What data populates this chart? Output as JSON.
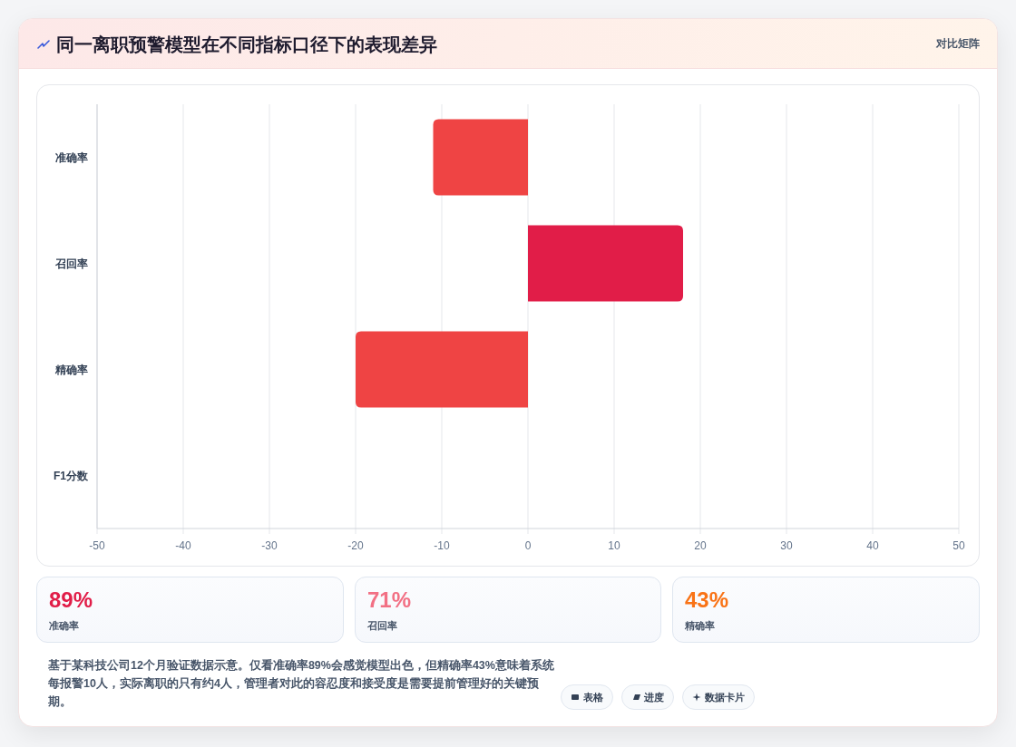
{
  "chart_data": [
    {
      "type": "bar",
      "title": "同一离职预警模型在不同指标口径下的表现差异",
      "orientation": "horizontal",
      "categories": [
        "准确率",
        "召回率",
        "精确率",
        "F1分数"
      ],
      "values": [
        -11,
        18,
        -20,
        null
      ],
      "colors": [
        "#ef4444",
        "#e11d48",
        "#ef4444",
        null
      ],
      "xlim": [
        -50,
        50
      ],
      "xticks": [
        -50,
        -40,
        -30,
        -20,
        -10,
        0,
        10,
        20,
        30,
        40,
        50
      ],
      "grid": "x",
      "annotations": [
        "对比矩阵"
      ]
    },
    {
      "type": "other",
      "annotations": [
        "89%",
        "准确率",
        "71%",
        "召回率",
        "43%",
        "精确率",
        "基于某科技公司12个月验证数据示意。仅看准确率89%会感觉模型出色，但精确率43%意味着系统每报警10人，实际离职的只有约4人，管理者对此的容忍度和接受度是需要提前管理好的关键预期。",
        "表格",
        "进度",
        "数据卡片"
      ],
      "colors": [
        "#e11d48",
        "#f27084",
        "#f97316"
      ]
    }
  ]
}
